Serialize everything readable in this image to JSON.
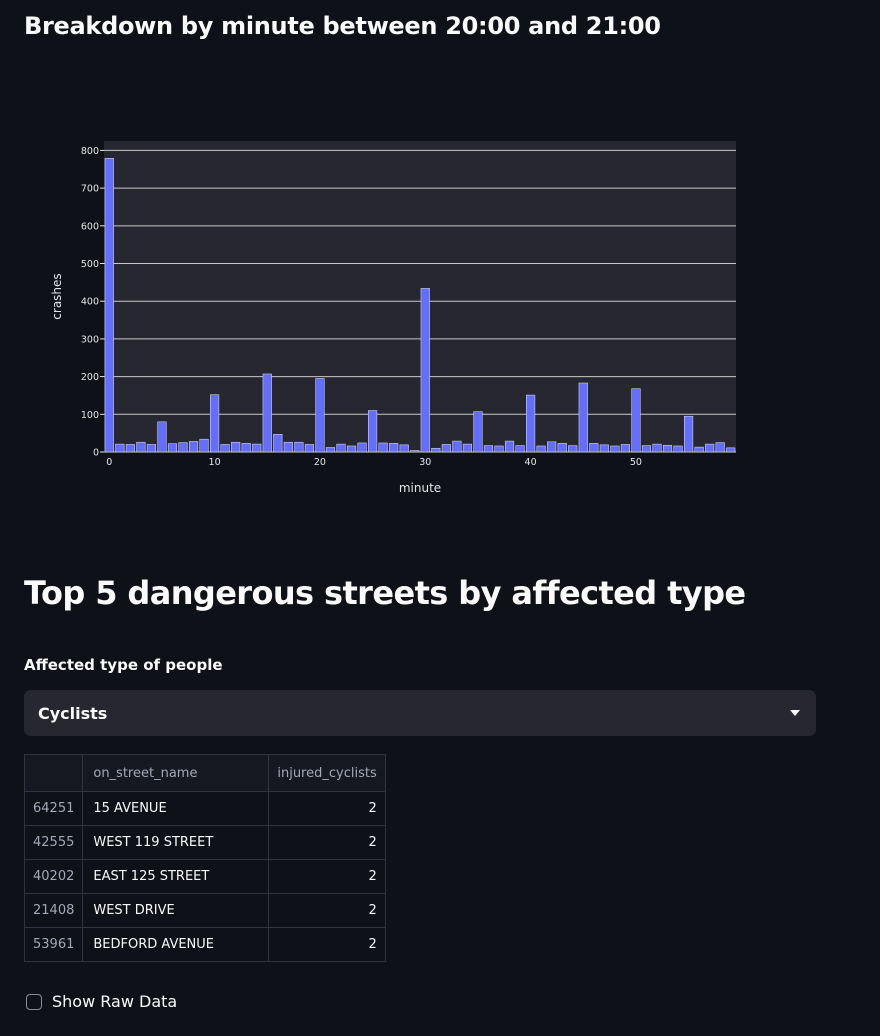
{
  "section1": {
    "title": "Breakdown by minute between 20:00 and 21:00"
  },
  "chart_data": {
    "type": "bar",
    "xlabel": "minute",
    "ylabel": "crashes",
    "x": [
      0,
      1,
      2,
      3,
      4,
      5,
      6,
      7,
      8,
      9,
      10,
      11,
      12,
      13,
      14,
      15,
      16,
      17,
      18,
      19,
      20,
      21,
      22,
      23,
      24,
      25,
      26,
      27,
      28,
      29,
      30,
      31,
      32,
      33,
      34,
      35,
      36,
      37,
      38,
      39,
      40,
      41,
      42,
      43,
      44,
      45,
      46,
      47,
      48,
      49,
      50,
      51,
      52,
      53,
      54,
      55,
      56,
      57,
      58,
      59
    ],
    "values": [
      779,
      21,
      20,
      26,
      20,
      80,
      22,
      25,
      28,
      34,
      152,
      20,
      26,
      23,
      21,
      207,
      47,
      26,
      26,
      20,
      195,
      12,
      21,
      16,
      24,
      110,
      24,
      23,
      19,
      4,
      434,
      10,
      20,
      29,
      21,
      107,
      17,
      16,
      29,
      17,
      151,
      16,
      27,
      23,
      17,
      183,
      23,
      19,
      16,
      20,
      168,
      17,
      21,
      18,
      16,
      95,
      13,
      21,
      25,
      11
    ],
    "xlim": [
      -0.5,
      59.5
    ],
    "ylim": [
      0,
      825
    ],
    "x_ticks": [
      0,
      10,
      20,
      30,
      40,
      50
    ],
    "y_ticks": [
      0,
      100,
      200,
      300,
      400,
      500,
      600,
      700,
      800
    ],
    "grid": true,
    "bar_color": "#636efa",
    "plot_bg": "#262730",
    "grid_color": "#e6e6e6"
  },
  "section2": {
    "title": "Top 5 dangerous streets by affected type",
    "select_label": "Affected type of people",
    "select_value": "Cyclists"
  },
  "table": {
    "columns": [
      "",
      "on_street_name",
      "injured_cyclists"
    ],
    "rows": [
      {
        "index": "64251",
        "street": "15 AVENUE",
        "value": "2"
      },
      {
        "index": "42555",
        "street": "WEST 119 STREET",
        "value": "2"
      },
      {
        "index": "40202",
        "street": "EAST 125 STREET",
        "value": "2"
      },
      {
        "index": "21408",
        "street": "WEST DRIVE",
        "value": "2"
      },
      {
        "index": "53961",
        "street": "BEDFORD AVENUE",
        "value": "2"
      }
    ]
  },
  "checkbox": {
    "label": "Show Raw Data",
    "checked": false
  }
}
